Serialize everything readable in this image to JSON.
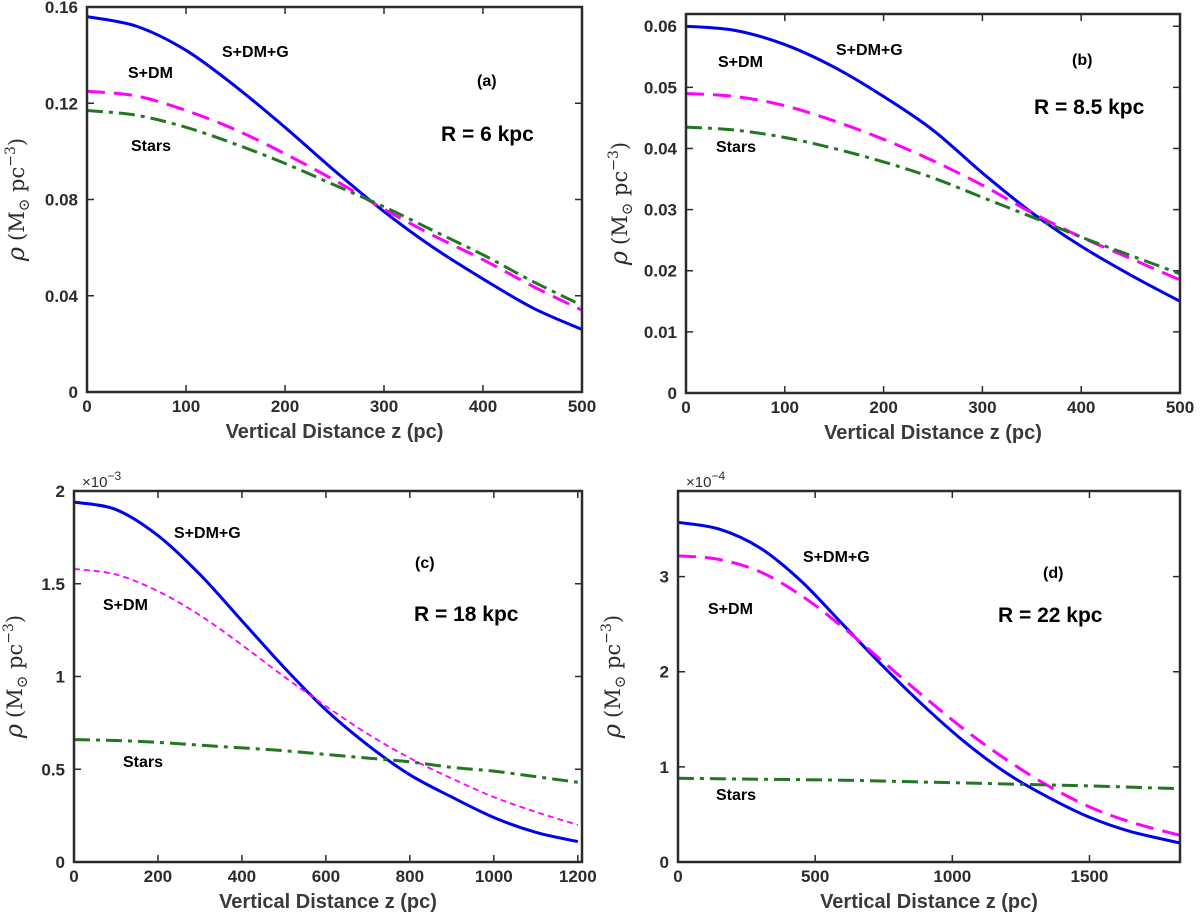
{
  "chart_data": [
    {
      "type": "line",
      "panel": "(a)",
      "annotation": "R = 6 kpc",
      "xlabel": "Vertical Distance  z (pc)",
      "ylabel": {
        "symbol": "ρ",
        "unit": "(M",
        "sun": "⊙",
        "pc": " pc",
        "exp": "−3",
        "close": ")"
      },
      "xlim": [
        0,
        500
      ],
      "ylim": [
        0,
        0.16
      ],
      "xticks": [
        0,
        100,
        200,
        300,
        400,
        500
      ],
      "xtick_labels": [
        "0",
        "100",
        "200",
        "300",
        "400",
        "500"
      ],
      "yticks": [
        0,
        0.04,
        0.08,
        0.12,
        0.16
      ],
      "ytick_labels": [
        "0",
        "0.04",
        "0.08",
        "0.12",
        "0.16"
      ],
      "y_scale_label": "",
      "series": [
        {
          "name": "S+DM+G",
          "color": "#0000ee",
          "dash": "solid",
          "x": [
            0,
            50,
            100,
            150,
            200,
            250,
            300,
            350,
            400,
            450,
            500
          ],
          "y": [
            0.156,
            0.152,
            0.142,
            0.127,
            0.11,
            0.092,
            0.075,
            0.06,
            0.047,
            0.035,
            0.026
          ]
        },
        {
          "name": "S+DM",
          "color": "#ff00ff",
          "dash": "dashed",
          "x": [
            0,
            50,
            100,
            150,
            200,
            250,
            300,
            350,
            400,
            450,
            500
          ],
          "y": [
            0.125,
            0.123,
            0.117,
            0.109,
            0.099,
            0.088,
            0.076,
            0.065,
            0.055,
            0.044,
            0.034
          ]
        },
        {
          "name": "Stars",
          "color": "#227722",
          "dash": "dashdot",
          "x": [
            0,
            50,
            100,
            150,
            200,
            250,
            300,
            350,
            400,
            450,
            500
          ],
          "y": [
            0.117,
            0.115,
            0.11,
            0.103,
            0.095,
            0.086,
            0.077,
            0.067,
            0.057,
            0.046,
            0.036
          ]
        }
      ],
      "labels": [
        "S+DM+G",
        "S+DM",
        "Stars"
      ]
    },
    {
      "type": "line",
      "panel": "(b)",
      "annotation": "R = 8.5 kpc",
      "xlabel": "Vertical Distance z (pc)",
      "ylabel": {
        "symbol": "ρ",
        "unit": "(M",
        "sun": "⊙",
        "pc": " pc",
        "exp": "−3",
        "close": ")"
      },
      "xlim": [
        0,
        500
      ],
      "ylim": [
        0,
        0.062
      ],
      "xticks": [
        0,
        100,
        200,
        300,
        400,
        500
      ],
      "xtick_labels": [
        "0",
        "100",
        "200",
        "300",
        "400",
        "500"
      ],
      "yticks": [
        0,
        0.01,
        0.02,
        0.03,
        0.04,
        0.05,
        0.06
      ],
      "ytick_labels": [
        "0",
        "0.01",
        "0.02",
        "0.03",
        "0.04",
        "0.05",
        "0.06"
      ],
      "y_scale_label": "",
      "series": [
        {
          "name": "S+DM+G",
          "color": "#0000ee",
          "dash": "solid",
          "x": [
            0,
            50,
            100,
            150,
            200,
            250,
            300,
            350,
            400,
            450,
            500
          ],
          "y": [
            0.06,
            0.0593,
            0.057,
            0.0533,
            0.0485,
            0.043,
            0.036,
            0.0295,
            0.024,
            0.0193,
            0.015
          ]
        },
        {
          "name": "S+DM",
          "color": "#ff00ff",
          "dash": "dashed",
          "x": [
            0,
            50,
            100,
            150,
            200,
            250,
            300,
            350,
            400,
            450,
            500
          ],
          "y": [
            0.049,
            0.0485,
            0.047,
            0.0445,
            0.0415,
            0.038,
            0.034,
            0.0295,
            0.0255,
            0.022,
            0.0185
          ]
        },
        {
          "name": "Stars",
          "color": "#227722",
          "dash": "dashdot",
          "x": [
            0,
            50,
            100,
            150,
            200,
            250,
            300,
            350,
            400,
            450,
            500
          ],
          "y": [
            0.0435,
            0.043,
            0.0418,
            0.04,
            0.0378,
            0.0352,
            0.032,
            0.0288,
            0.0255,
            0.0225,
            0.0195
          ]
        }
      ],
      "labels": [
        "S+DM+G",
        "S+DM",
        "Stars"
      ]
    },
    {
      "type": "line",
      "panel": "(c)",
      "annotation": "R = 18 kpc",
      "xlabel": "Vertical Distance z (pc)",
      "ylabel": {
        "symbol": "ρ",
        "unit": "(M",
        "sun": "⊙",
        "pc": " pc",
        "exp": "−3",
        "close": ")"
      },
      "xlim": [
        0,
        1210
      ],
      "ylim": [
        0,
        2.0
      ],
      "xticks": [
        0,
        200,
        400,
        600,
        800,
        1000,
        1200
      ],
      "xtick_labels": [
        "0",
        "200",
        "400",
        "600",
        "800",
        "1000",
        "1200"
      ],
      "yticks": [
        0,
        0.5,
        1,
        1.5,
        2
      ],
      "ytick_labels": [
        "0",
        "0.5",
        "1",
        "1.5",
        "2"
      ],
      "y_scale_label": "×10",
      "y_scale_exp": "−3",
      "series": [
        {
          "name": "S+DM+G",
          "color": "#0000ee",
          "dash": "solid",
          "x": [
            0,
            100,
            200,
            300,
            400,
            500,
            600,
            700,
            800,
            900,
            1000,
            1100,
            1200
          ],
          "y": [
            1.94,
            1.9,
            1.76,
            1.55,
            1.3,
            1.05,
            0.82,
            0.63,
            0.47,
            0.35,
            0.24,
            0.16,
            0.11
          ]
        },
        {
          "name": "S+DM",
          "color": "#ff00ff",
          "dash": "dashed-fine",
          "x": [
            0,
            100,
            200,
            300,
            400,
            500,
            600,
            700,
            800,
            900,
            1000,
            1100,
            1200
          ],
          "y": [
            1.58,
            1.55,
            1.46,
            1.33,
            1.17,
            1.0,
            0.84,
            0.69,
            0.56,
            0.45,
            0.35,
            0.27,
            0.2
          ]
        },
        {
          "name": "Stars",
          "color": "#227722",
          "dash": "dashdot",
          "x": [
            0,
            100,
            200,
            300,
            400,
            500,
            600,
            700,
            800,
            900,
            1000,
            1100,
            1200
          ],
          "y": [
            0.66,
            0.655,
            0.645,
            0.63,
            0.615,
            0.6,
            0.58,
            0.56,
            0.54,
            0.51,
            0.49,
            0.46,
            0.43
          ]
        }
      ],
      "labels": [
        "S+DM+G",
        "S+DM",
        "Stars"
      ]
    },
    {
      "type": "line",
      "panel": "(d)",
      "annotation": "R = 22 kpc",
      "xlabel": "Vertical Distance z  (pc)",
      "ylabel": {
        "symbol": "ρ",
        "unit": "(M",
        "sun": "⊙",
        "pc": " pc",
        "exp": "−3",
        "close": ")"
      },
      "xlim": [
        0,
        1830
      ],
      "ylim": [
        0,
        3.9
      ],
      "xticks": [
        0,
        500,
        1000,
        1500
      ],
      "xtick_labels": [
        "0",
        "500",
        "1000",
        "1500"
      ],
      "yticks": [
        0,
        1,
        2,
        3
      ],
      "ytick_labels": [
        "0",
        "1",
        "2",
        "3"
      ],
      "y_scale_label": "×10",
      "y_scale_exp": "−4",
      "series": [
        {
          "name": "S+DM+G",
          "color": "#0000ee",
          "dash": "solid",
          "x": [
            0,
            150,
            300,
            450,
            600,
            750,
            900,
            1050,
            1200,
            1350,
            1500,
            1650,
            1830
          ],
          "y": [
            3.57,
            3.5,
            3.3,
            2.95,
            2.5,
            2.05,
            1.63,
            1.25,
            0.93,
            0.68,
            0.47,
            0.32,
            0.2
          ]
        },
        {
          "name": "S+DM",
          "color": "#ff00ff",
          "dash": "dashed",
          "x": [
            0,
            150,
            300,
            450,
            600,
            750,
            900,
            1050,
            1200,
            1350,
            1500,
            1650,
            1830
          ],
          "y": [
            3.22,
            3.18,
            3.05,
            2.8,
            2.47,
            2.1,
            1.73,
            1.38,
            1.07,
            0.8,
            0.58,
            0.42,
            0.28
          ]
        },
        {
          "name": "Stars",
          "color": "#227722",
          "dash": "dashdot",
          "x": [
            0,
            300,
            600,
            900,
            1200,
            1500,
            1830
          ],
          "y": [
            0.88,
            0.87,
            0.86,
            0.84,
            0.82,
            0.8,
            0.77
          ]
        }
      ],
      "labels": [
        "S+DM+G",
        "S+DM",
        "Stars"
      ]
    }
  ]
}
